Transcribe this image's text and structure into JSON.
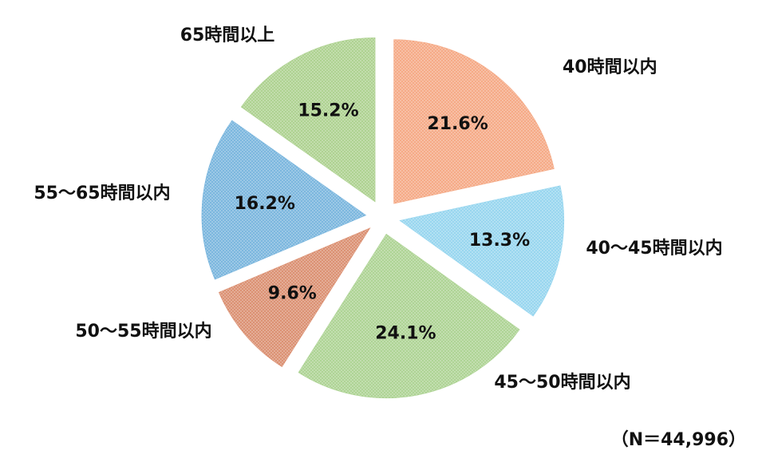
{
  "chart_data": {
    "type": "pie",
    "categories": [
      "40時間以内",
      "40～45時間以内",
      "45～50時間以内",
      "50～55時間以内",
      "55～65時間以内",
      "65時間以上"
    ],
    "values": [
      21.6,
      13.3,
      24.1,
      9.6,
      16.2,
      15.2
    ],
    "value_labels": [
      "21.6%",
      "13.3%",
      "24.1%",
      "9.6%",
      "16.2%",
      "15.2%"
    ],
    "colors": [
      "#f4a57f",
      "#92d4ee",
      "#a9d18e",
      "#d98a6a",
      "#73b2dc",
      "#a9cf8a"
    ],
    "annotation": "（N＝44,996）"
  }
}
